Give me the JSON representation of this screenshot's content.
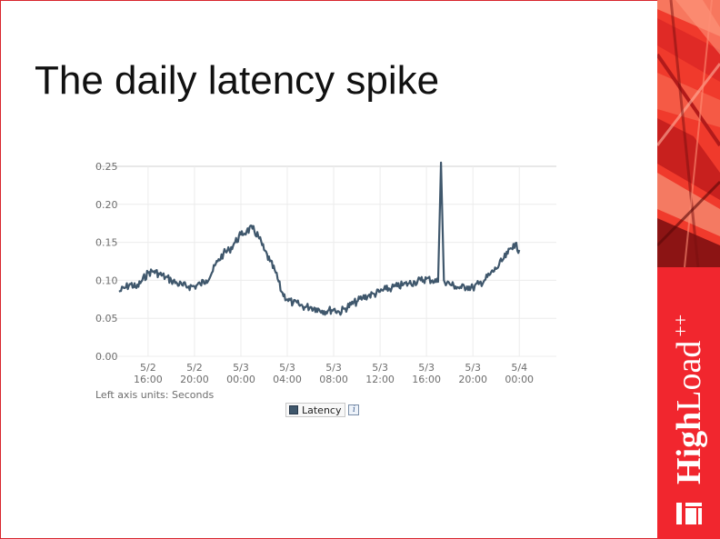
{
  "slide": {
    "title": "The daily latency spike"
  },
  "brand": {
    "word_bold": "High",
    "word_regular": "Load",
    "suffix": "++",
    "colors": {
      "band": "#f03a2c",
      "brand_red": "#f1262e"
    }
  },
  "chart_data": {
    "type": "line",
    "title": "",
    "xlabel": "",
    "ylabel": "",
    "units_note": "Left axis units: Seconds",
    "ylim": [
      0,
      0.25
    ],
    "y_ticks": [
      "0.00",
      "0.05",
      "0.10",
      "0.15",
      "0.20",
      "0.25"
    ],
    "x_ticks": [
      {
        "date": "5/2",
        "time": "16:00"
      },
      {
        "date": "5/2",
        "time": "20:00"
      },
      {
        "date": "5/3",
        "time": "00:00"
      },
      {
        "date": "5/3",
        "time": "04:00"
      },
      {
        "date": "5/3",
        "time": "08:00"
      },
      {
        "date": "5/3",
        "time": "12:00"
      },
      {
        "date": "5/3",
        "time": "16:00"
      },
      {
        "date": "5/3",
        "time": "20:00"
      },
      {
        "date": "5/4",
        "time": "00:00"
      }
    ],
    "grid": true,
    "legend": "bottom-center",
    "series": [
      {
        "name": "Latency",
        "color": "#3f576c",
        "points": [
          [
            "5/2 13:30",
            0.085
          ],
          [
            "5/2 14:00",
            0.09
          ],
          [
            "5/2 14:30",
            0.095
          ],
          [
            "5/2 15:00",
            0.09
          ],
          [
            "5/2 15:30",
            0.1
          ],
          [
            "5/2 16:00",
            0.11
          ],
          [
            "5/2 16:30",
            0.112
          ],
          [
            "5/2 17:00",
            0.108
          ],
          [
            "5/2 17:30",
            0.104
          ],
          [
            "5/2 18:00",
            0.1
          ],
          [
            "5/2 18:30",
            0.096
          ],
          [
            "5/2 19:00",
            0.093
          ],
          [
            "5/2 19:30",
            0.092
          ],
          [
            "5/2 20:00",
            0.092
          ],
          [
            "5/2 20:30",
            0.095
          ],
          [
            "5/2 21:00",
            0.1
          ],
          [
            "5/2 21:30",
            0.11
          ],
          [
            "5/2 22:00",
            0.125
          ],
          [
            "5/2 22:30",
            0.135
          ],
          [
            "5/2 23:00",
            0.14
          ],
          [
            "5/2 23:30",
            0.15
          ],
          [
            "5/3 00:00",
            0.16
          ],
          [
            "5/3 00:30",
            0.165
          ],
          [
            "5/3 01:00",
            0.168
          ],
          [
            "5/3 01:30",
            0.158
          ],
          [
            "5/3 02:00",
            0.14
          ],
          [
            "5/3 02:30",
            0.125
          ],
          [
            "5/3 03:00",
            0.11
          ],
          [
            "5/3 03:30",
            0.085
          ],
          [
            "5/3 04:00",
            0.075
          ],
          [
            "5/3 04:30",
            0.07
          ],
          [
            "5/3 05:00",
            0.068
          ],
          [
            "5/3 05:30",
            0.065
          ],
          [
            "5/3 06:00",
            0.065
          ],
          [
            "5/3 06:30",
            0.063
          ],
          [
            "5/3 07:00",
            0.06
          ],
          [
            "5/3 07:30",
            0.06
          ],
          [
            "5/3 08:00",
            0.062
          ],
          [
            "5/3 08:30",
            0.058
          ],
          [
            "5/3 09:00",
            0.063
          ],
          [
            "5/3 09:30",
            0.068
          ],
          [
            "5/3 10:00",
            0.072
          ],
          [
            "5/3 10:30",
            0.077
          ],
          [
            "5/3 11:00",
            0.08
          ],
          [
            "5/3 11:30",
            0.082
          ],
          [
            "5/3 12:00",
            0.085
          ],
          [
            "5/3 12:30",
            0.088
          ],
          [
            "5/3 13:00",
            0.09
          ],
          [
            "5/3 13:30",
            0.092
          ],
          [
            "5/3 14:00",
            0.094
          ],
          [
            "5/3 14:30",
            0.096
          ],
          [
            "5/3 15:00",
            0.098
          ],
          [
            "5/3 15:30",
            0.1
          ],
          [
            "5/3 16:00",
            0.102
          ],
          [
            "5/3 16:30",
            0.1
          ],
          [
            "5/3 17:00",
            0.098
          ],
          [
            "5/3 17:15",
            0.255
          ],
          [
            "5/3 17:30",
            0.1
          ],
          [
            "5/3 18:00",
            0.095
          ],
          [
            "5/3 18:30",
            0.092
          ],
          [
            "5/3 19:00",
            0.09
          ],
          [
            "5/3 19:30",
            0.092
          ],
          [
            "5/3 20:00",
            0.09
          ],
          [
            "5/3 20:30",
            0.095
          ],
          [
            "5/3 21:00",
            0.1
          ],
          [
            "5/3 21:30",
            0.108
          ],
          [
            "5/3 22:00",
            0.115
          ],
          [
            "5/3 22:30",
            0.125
          ],
          [
            "5/3 23:00",
            0.135
          ],
          [
            "5/3 23:30",
            0.148
          ],
          [
            "5/4 00:00",
            0.14
          ]
        ]
      }
    ]
  }
}
